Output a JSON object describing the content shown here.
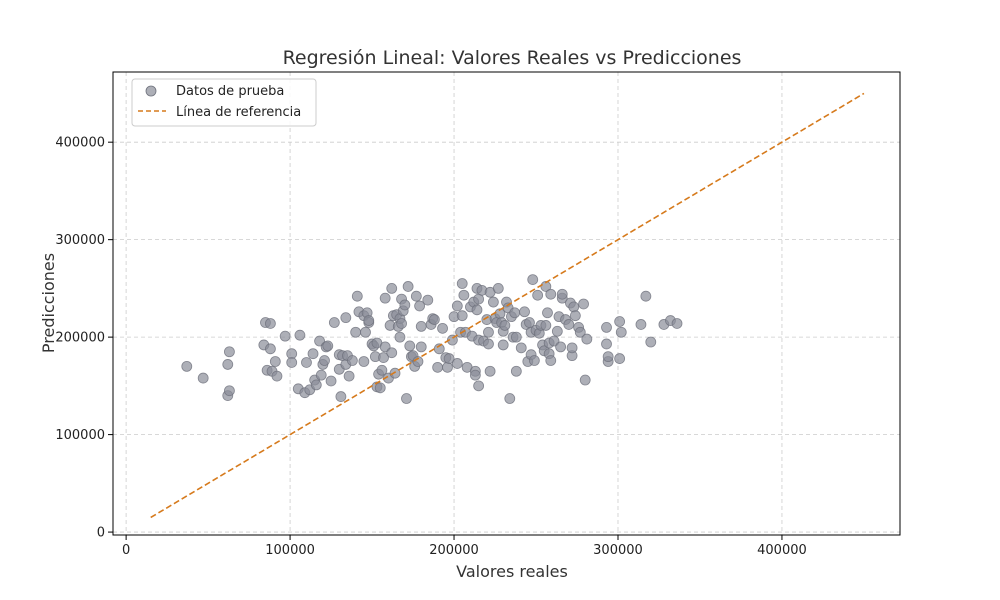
{
  "chart_data": {
    "type": "scatter",
    "title": "Regresión Lineal: Valores Reales vs Predicciones",
    "xlabel": "Valores reales",
    "ylabel": "Predicciones",
    "xlim": [
      -8000,
      472000
    ],
    "ylim": [
      -3000,
      472000
    ],
    "xticks": [
      0,
      100000,
      200000,
      300000,
      400000
    ],
    "yticks": [
      0,
      100000,
      200000,
      300000,
      400000
    ],
    "xtick_labels": [
      "0",
      "100000",
      "200000",
      "300000",
      "400000"
    ],
    "ytick_labels": [
      "0",
      "100000",
      "200000",
      "300000",
      "400000"
    ],
    "grid": true,
    "legend_position": "top-left",
    "colors": {
      "points": "#8a8d99",
      "reference_line": "#d67a1c"
    },
    "series": [
      {
        "name": "Datos de prueba",
        "kind": "scatter",
        "points": [
          [
            37000,
            170000
          ],
          [
            47000,
            158000
          ],
          [
            62000,
            172000
          ],
          [
            63000,
            185000
          ],
          [
            62000,
            140000
          ],
          [
            63000,
            145000
          ],
          [
            84000,
            192000
          ],
          [
            85000,
            215000
          ],
          [
            88000,
            214000
          ],
          [
            88000,
            188000
          ],
          [
            86000,
            166000
          ],
          [
            89000,
            165000
          ],
          [
            91000,
            175000
          ],
          [
            92000,
            160000
          ],
          [
            97000,
            201000
          ],
          [
            101000,
            183000
          ],
          [
            101000,
            174000
          ],
          [
            105000,
            147000
          ],
          [
            106000,
            202000
          ],
          [
            109000,
            143000
          ],
          [
            110000,
            174000
          ],
          [
            112000,
            146000
          ],
          [
            114000,
            183000
          ],
          [
            115000,
            156000
          ],
          [
            116000,
            151000
          ],
          [
            118000,
            196000
          ],
          [
            119000,
            161000
          ],
          [
            120000,
            172000
          ],
          [
            121000,
            176000
          ],
          [
            122000,
            190000
          ],
          [
            123000,
            191000
          ],
          [
            125000,
            155000
          ],
          [
            127000,
            215000
          ],
          [
            130000,
            182000
          ],
          [
            130000,
            167000
          ],
          [
            131000,
            139000
          ],
          [
            132000,
            181000
          ],
          [
            134000,
            220000
          ],
          [
            134000,
            172000
          ],
          [
            135000,
            181000
          ],
          [
            136000,
            160000
          ],
          [
            138000,
            176000
          ],
          [
            140000,
            205000
          ],
          [
            141000,
            242000
          ],
          [
            142000,
            226000
          ],
          [
            145000,
            222000
          ],
          [
            145000,
            175000
          ],
          [
            146000,
            205000
          ],
          [
            147000,
            225000
          ],
          [
            148000,
            215000
          ],
          [
            148000,
            217000
          ],
          [
            150000,
            193000
          ],
          [
            151000,
            191000
          ],
          [
            152000,
            180000
          ],
          [
            153000,
            194000
          ],
          [
            153000,
            149000
          ],
          [
            154000,
            162000
          ],
          [
            155000,
            148000
          ],
          [
            156000,
            166000
          ],
          [
            157000,
            179000
          ],
          [
            158000,
            190000
          ],
          [
            158000,
            240000
          ],
          [
            160000,
            158000
          ],
          [
            161000,
            212000
          ],
          [
            162000,
            250000
          ],
          [
            162000,
            184000
          ],
          [
            163000,
            222000
          ],
          [
            164000,
            163000
          ],
          [
            165000,
            223000
          ],
          [
            166000,
            211000
          ],
          [
            167000,
            219000
          ],
          [
            167000,
            200000
          ],
          [
            168000,
            239000
          ],
          [
            168000,
            214000
          ],
          [
            169000,
            227000
          ],
          [
            170000,
            233000
          ],
          [
            171000,
            137000
          ],
          [
            172000,
            252000
          ],
          [
            173000,
            191000
          ],
          [
            174000,
            180000
          ],
          [
            175000,
            181000
          ],
          [
            176000,
            170000
          ],
          [
            177000,
            242000
          ],
          [
            178000,
            175000
          ],
          [
            179000,
            232000
          ],
          [
            180000,
            211000
          ],
          [
            180000,
            190000
          ],
          [
            184000,
            238000
          ],
          [
            186000,
            213000
          ],
          [
            187000,
            219000
          ],
          [
            188000,
            218000
          ],
          [
            190000,
            169000
          ],
          [
            191000,
            188000
          ],
          [
            193000,
            209000
          ],
          [
            195000,
            179000
          ],
          [
            196000,
            169000
          ],
          [
            197000,
            178000
          ],
          [
            199000,
            197000
          ],
          [
            200000,
            221000
          ],
          [
            202000,
            232000
          ],
          [
            202000,
            173000
          ],
          [
            204000,
            205000
          ],
          [
            205000,
            255000
          ],
          [
            205000,
            222000
          ],
          [
            206000,
            243000
          ],
          [
            207000,
            205000
          ],
          [
            208000,
            169000
          ],
          [
            210000,
            231000
          ],
          [
            211000,
            201000
          ],
          [
            212000,
            236000
          ],
          [
            213000,
            165000
          ],
          [
            213000,
            161000
          ],
          [
            214000,
            250000
          ],
          [
            214000,
            228000
          ],
          [
            215000,
            239000
          ],
          [
            215000,
            197000
          ],
          [
            215000,
            150000
          ],
          [
            217000,
            248000
          ],
          [
            218000,
            196000
          ],
          [
            220000,
            218000
          ],
          [
            221000,
            205000
          ],
          [
            221000,
            193000
          ],
          [
            222000,
            246000
          ],
          [
            222000,
            165000
          ],
          [
            224000,
            236000
          ],
          [
            225000,
            219000
          ],
          [
            226000,
            215000
          ],
          [
            227000,
            250000
          ],
          [
            228000,
            224000
          ],
          [
            229000,
            215000
          ],
          [
            230000,
            206000
          ],
          [
            230000,
            192000
          ],
          [
            231000,
            212000
          ],
          [
            232000,
            236000
          ],
          [
            233000,
            230000
          ],
          [
            234000,
            137000
          ],
          [
            235000,
            221000
          ],
          [
            236000,
            200000
          ],
          [
            237000,
            225000
          ],
          [
            238000,
            200000
          ],
          [
            238000,
            165000
          ],
          [
            241000,
            189000
          ],
          [
            243000,
            226000
          ],
          [
            244000,
            213000
          ],
          [
            245000,
            175000
          ],
          [
            246000,
            215000
          ],
          [
            247000,
            182000
          ],
          [
            247000,
            205000
          ],
          [
            248000,
            259000
          ],
          [
            249000,
            176000
          ],
          [
            250000,
            207000
          ],
          [
            251000,
            243000
          ],
          [
            252000,
            204000
          ],
          [
            253000,
            212000
          ],
          [
            254000,
            192000
          ],
          [
            255000,
            186000
          ],
          [
            256000,
            212000
          ],
          [
            256000,
            252000
          ],
          [
            257000,
            225000
          ],
          [
            258000,
            183000
          ],
          [
            258000,
            194000
          ],
          [
            259000,
            176000
          ],
          [
            259000,
            244000
          ],
          [
            261000,
            196000
          ],
          [
            263000,
            206000
          ],
          [
            264000,
            221000
          ],
          [
            265000,
            190000
          ],
          [
            266000,
            240000
          ],
          [
            266000,
            244000
          ],
          [
            268000,
            218000
          ],
          [
            270000,
            213000
          ],
          [
            271000,
            235000
          ],
          [
            272000,
            181000
          ],
          [
            272000,
            189000
          ],
          [
            273000,
            231000
          ],
          [
            274000,
            222000
          ],
          [
            276000,
            210000
          ],
          [
            277000,
            205000
          ],
          [
            279000,
            234000
          ],
          [
            280000,
            156000
          ],
          [
            281000,
            198000
          ],
          [
            293000,
            210000
          ],
          [
            293000,
            193000
          ],
          [
            294000,
            175000
          ],
          [
            294000,
            180000
          ],
          [
            301000,
            216000
          ],
          [
            301000,
            178000
          ],
          [
            302000,
            205000
          ],
          [
            314000,
            213000
          ],
          [
            317000,
            242000
          ],
          [
            320000,
            195000
          ],
          [
            328000,
            213000
          ],
          [
            332000,
            217000
          ],
          [
            336000,
            214000
          ]
        ]
      },
      {
        "name": "Línea de referencia",
        "kind": "line",
        "style": "dashed",
        "points": [
          [
            15000,
            15000
          ],
          [
            450000,
            450000
          ]
        ]
      }
    ]
  }
}
